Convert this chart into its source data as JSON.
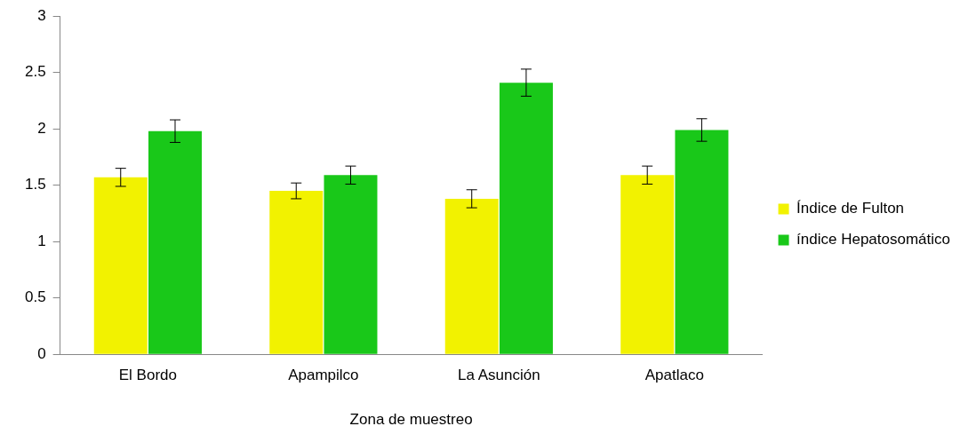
{
  "chart_data": {
    "type": "bar",
    "xlabel": "Zona de muestreo",
    "categories": [
      "El Bordo",
      "Apampilco",
      "La Asunción",
      "Apatlaco"
    ],
    "series": [
      {
        "name": "Índice de Fulton",
        "color": "#f2f200",
        "values": [
          1.57,
          1.45,
          1.38,
          1.59
        ],
        "errors": [
          0.08,
          0.07,
          0.08,
          0.08
        ]
      },
      {
        "name": "índice Hepatosomático",
        "color": "#19c819",
        "values": [
          1.98,
          1.59,
          2.41,
          1.99
        ],
        "errors": [
          0.1,
          0.08,
          0.12,
          0.1
        ]
      }
    ],
    "ylim": [
      0,
      3
    ],
    "yticks": [
      0,
      0.5,
      1,
      1.5,
      2,
      2.5,
      3
    ],
    "grid": false,
    "legend": "right"
  }
}
